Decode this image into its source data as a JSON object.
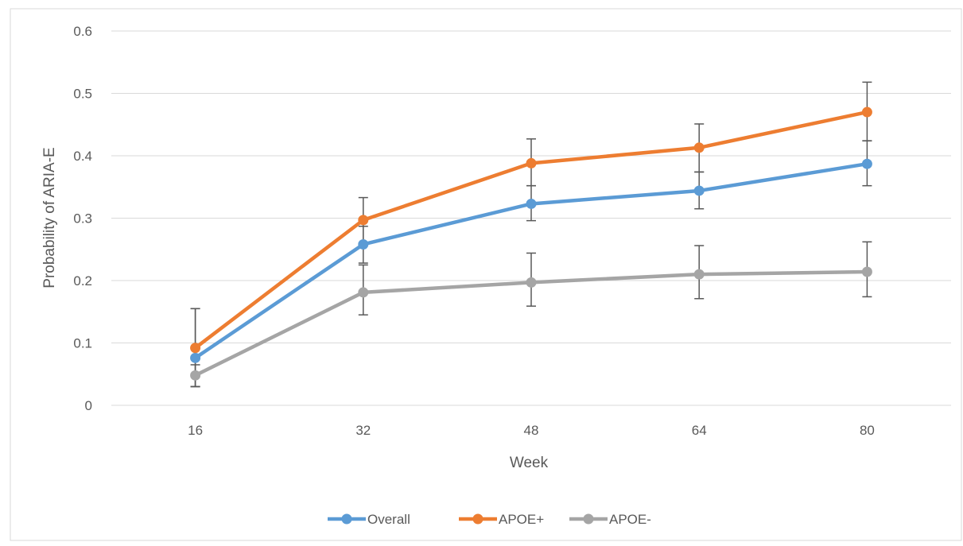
{
  "chart_data": {
    "type": "line",
    "title": "",
    "xlabel": "Week",
    "ylabel": "Probability of ARIA-E",
    "categories": [
      "16",
      "32",
      "48",
      "64",
      "80"
    ],
    "ylim": [
      0,
      0.6
    ],
    "yticks": [
      "0",
      "0.1",
      "0.2",
      "0.3",
      "0.4",
      "0.5",
      "0.6"
    ],
    "ytick_values": [
      0,
      0.1,
      0.2,
      0.3,
      0.4,
      0.5,
      0.6
    ],
    "grid": "horizontal",
    "legend_position": "bottom",
    "error_bars": true,
    "series": [
      {
        "name": "Overall",
        "color": "#5B9BD5",
        "values": [
          0.076,
          0.258,
          0.323,
          0.344,
          0.387
        ],
        "lower": [
          0.03,
          0.228,
          0.296,
          0.315,
          0.352
        ],
        "upper": [
          0.155,
          0.287,
          0.352,
          0.374,
          0.424
        ]
      },
      {
        "name": "APOE+",
        "color": "#ED7D31",
        "values": [
          0.092,
          0.297,
          0.388,
          0.413,
          0.47
        ],
        "lower": [
          0.03,
          0.26,
          0.352,
          0.374,
          0.424
        ],
        "upper": [
          0.155,
          0.333,
          0.427,
          0.451,
          0.518
        ]
      },
      {
        "name": "APOE-",
        "color": "#A5A5A5",
        "values": [
          0.048,
          0.181,
          0.197,
          0.21,
          0.214
        ],
        "lower": [
          0.03,
          0.145,
          0.159,
          0.171,
          0.174
        ],
        "upper": [
          0.065,
          0.225,
          0.244,
          0.256,
          0.262
        ]
      }
    ]
  }
}
